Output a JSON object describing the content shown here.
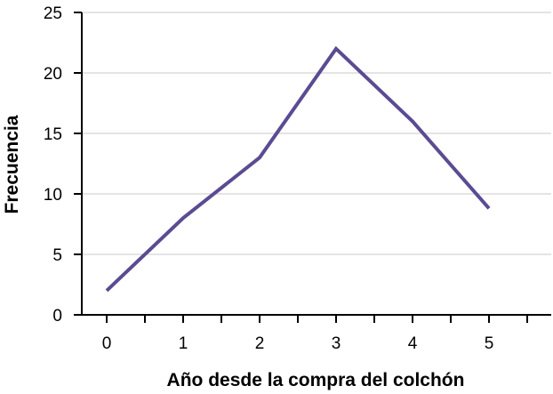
{
  "chart_data": {
    "type": "line",
    "title": "",
    "xlabel": "Año desde la compra del colchón",
    "ylabel": "Frecuencia",
    "x": [
      0,
      1,
      2,
      3,
      4,
      5
    ],
    "series": [
      {
        "values": [
          2,
          8,
          13,
          22,
          16,
          8.8
        ],
        "color": "#5b4b92"
      }
    ],
    "x_tick_labels": [
      "0",
      "1",
      "2",
      "3",
      "4",
      "5"
    ],
    "y_tick_labels": [
      "0",
      "5",
      "10",
      "15",
      "20",
      "25"
    ],
    "xlim": [
      -0.3,
      5.5
    ],
    "ylim": [
      0,
      25
    ],
    "grid": "horizontal",
    "legend": "none"
  }
}
